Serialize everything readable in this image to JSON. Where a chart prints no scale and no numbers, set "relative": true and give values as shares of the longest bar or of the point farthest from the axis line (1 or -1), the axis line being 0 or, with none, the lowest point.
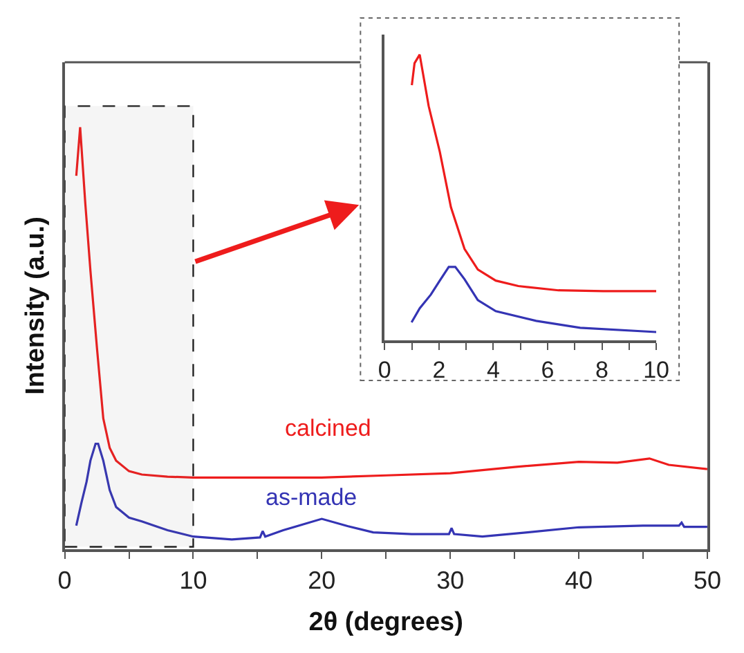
{
  "chart_data": [
    {
      "type": "line",
      "xlabel": "2θ (degrees)",
      "ylabel": "Intensity (a.u.)",
      "relative": true,
      "tick_labels": "x",
      "xlim": [
        0,
        50
      ],
      "xticks": [
        0,
        {
          "value": 5,
          "label": null
        },
        10,
        {
          "value": 15,
          "label": null
        },
        20,
        {
          "value": 25,
          "label": null
        },
        30,
        {
          "value": 35,
          "label": null
        },
        40,
        {
          "value": 45,
          "label": null
        },
        50
      ],
      "bands": [
        {
          "axis": "x",
          "from": 0,
          "to": 10
        }
      ],
      "series": [
        {
          "name": "calcined",
          "color": "#ee1c1c",
          "x": [
            0.9,
            1.2,
            1.6,
            2.0,
            2.5,
            3.0,
            3.5,
            4.0,
            5.0,
            6.0,
            8.0,
            10,
            15,
            20,
            25,
            30,
            35,
            40,
            43,
            45.5,
            47,
            50
          ],
          "values": [
            0.885,
            1.0,
            0.82,
            0.66,
            0.48,
            0.31,
            0.24,
            0.21,
            0.185,
            0.177,
            0.172,
            0.17,
            0.17,
            0.17,
            0.175,
            0.18,
            0.195,
            0.207,
            0.205,
            0.215,
            0.2,
            0.19
          ]
        },
        {
          "name": "as-made",
          "color": "#3434b4",
          "x": [
            0.9,
            1.3,
            1.7,
            2.0,
            2.4,
            2.6,
            3.0,
            3.5,
            4.0,
            5.0,
            6.0,
            8.0,
            10,
            13,
            15.2,
            15.4,
            15.6,
            17,
            20,
            22,
            24,
            27,
            29.9,
            30.1,
            30.3,
            32.5,
            36,
            40,
            45,
            47.8,
            48,
            48.2,
            50
          ],
          "values": [
            0.056,
            0.11,
            0.16,
            0.21,
            0.25,
            0.25,
            0.21,
            0.14,
            0.1,
            0.075,
            0.066,
            0.045,
            0.03,
            0.023,
            0.028,
            0.043,
            0.03,
            0.045,
            0.072,
            0.055,
            0.04,
            0.036,
            0.036,
            0.05,
            0.036,
            0.03,
            0.04,
            0.052,
            0.056,
            0.056,
            0.063,
            0.053,
            0.053
          ]
        }
      ]
    },
    {
      "type": "line",
      "relative": true,
      "tick_labels": "x",
      "xlim": [
        0,
        10
      ],
      "xticks": [
        0,
        {
          "value": 1,
          "label": null
        },
        2,
        {
          "value": 3,
          "label": null
        },
        4,
        {
          "value": 5,
          "label": null
        },
        6,
        {
          "value": 7,
          "label": null
        },
        8,
        {
          "value": 9,
          "label": null
        },
        10
      ],
      "series": [
        {
          "color": "#ee1c1c",
          "x": [
            1.0,
            1.1,
            1.29,
            1.62,
            2.03,
            2.44,
            2.94,
            3.43,
            4.09,
            4.92,
            6.4,
            8.05,
            10
          ],
          "values": [
            0.893,
            0.97,
            1.0,
            0.82,
            0.66,
            0.466,
            0.32,
            0.248,
            0.209,
            0.19,
            0.175,
            0.172,
            0.172
          ]
        },
        {
          "color": "#3434b4",
          "x": [
            0.99,
            1.29,
            1.7,
            2.03,
            2.36,
            2.6,
            2.94,
            3.43,
            4.09,
            5.58,
            7.2,
            10
          ],
          "values": [
            0.063,
            0.112,
            0.16,
            0.209,
            0.257,
            0.257,
            0.214,
            0.141,
            0.102,
            0.068,
            0.044,
            0.029
          ]
        }
      ]
    }
  ]
}
